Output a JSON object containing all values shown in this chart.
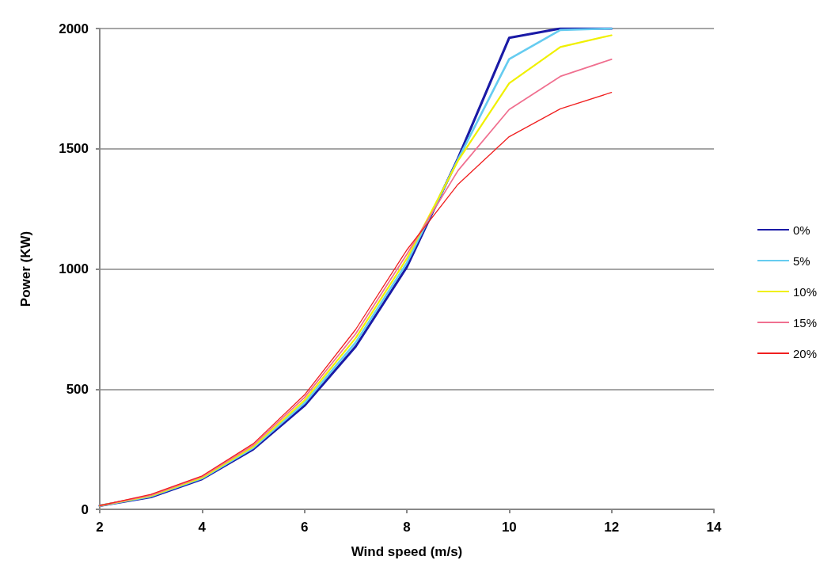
{
  "chart_data": {
    "type": "line",
    "xlabel": "Wind speed (m/s)",
    "ylabel": "Power (KW)",
    "x": [
      2,
      3,
      4,
      5,
      6,
      7,
      8,
      9,
      10,
      11,
      12
    ],
    "xlim": [
      2,
      14
    ],
    "xticks": [
      2,
      4,
      6,
      8,
      10,
      12,
      14
    ],
    "ylim": [
      0,
      2000
    ],
    "yticks": [
      0,
      500,
      1000,
      1500,
      2000
    ],
    "grid": "y",
    "legend": "right",
    "marker": "none",
    "line_style": "solid",
    "series": [
      {
        "name": "0%",
        "color": "#1a1aa6",
        "values": [
          15,
          51,
          126,
          250,
          431,
          677,
          1008,
          1460,
          1961,
          2000,
          2000
        ]
      },
      {
        "name": "5%",
        "color": "#66ccf0",
        "values": [
          15,
          54,
          129,
          256,
          442,
          694,
          1025,
          1455,
          1873,
          1994,
          2000
        ]
      },
      {
        "name": "10%",
        "color": "#f0f000",
        "values": [
          15,
          56,
          132,
          261,
          453,
          712,
          1043,
          1450,
          1772,
          1923,
          1972
        ]
      },
      {
        "name": "15%",
        "color": "#f07090",
        "values": [
          15,
          59,
          136,
          267,
          465,
          730,
          1061,
          1409,
          1663,
          1801,
          1872
        ]
      },
      {
        "name": "20%",
        "color": "#f02020",
        "values": [
          15,
          62,
          139,
          273,
          476,
          748,
          1079,
          1352,
          1550,
          1666,
          1734
        ]
      }
    ]
  }
}
